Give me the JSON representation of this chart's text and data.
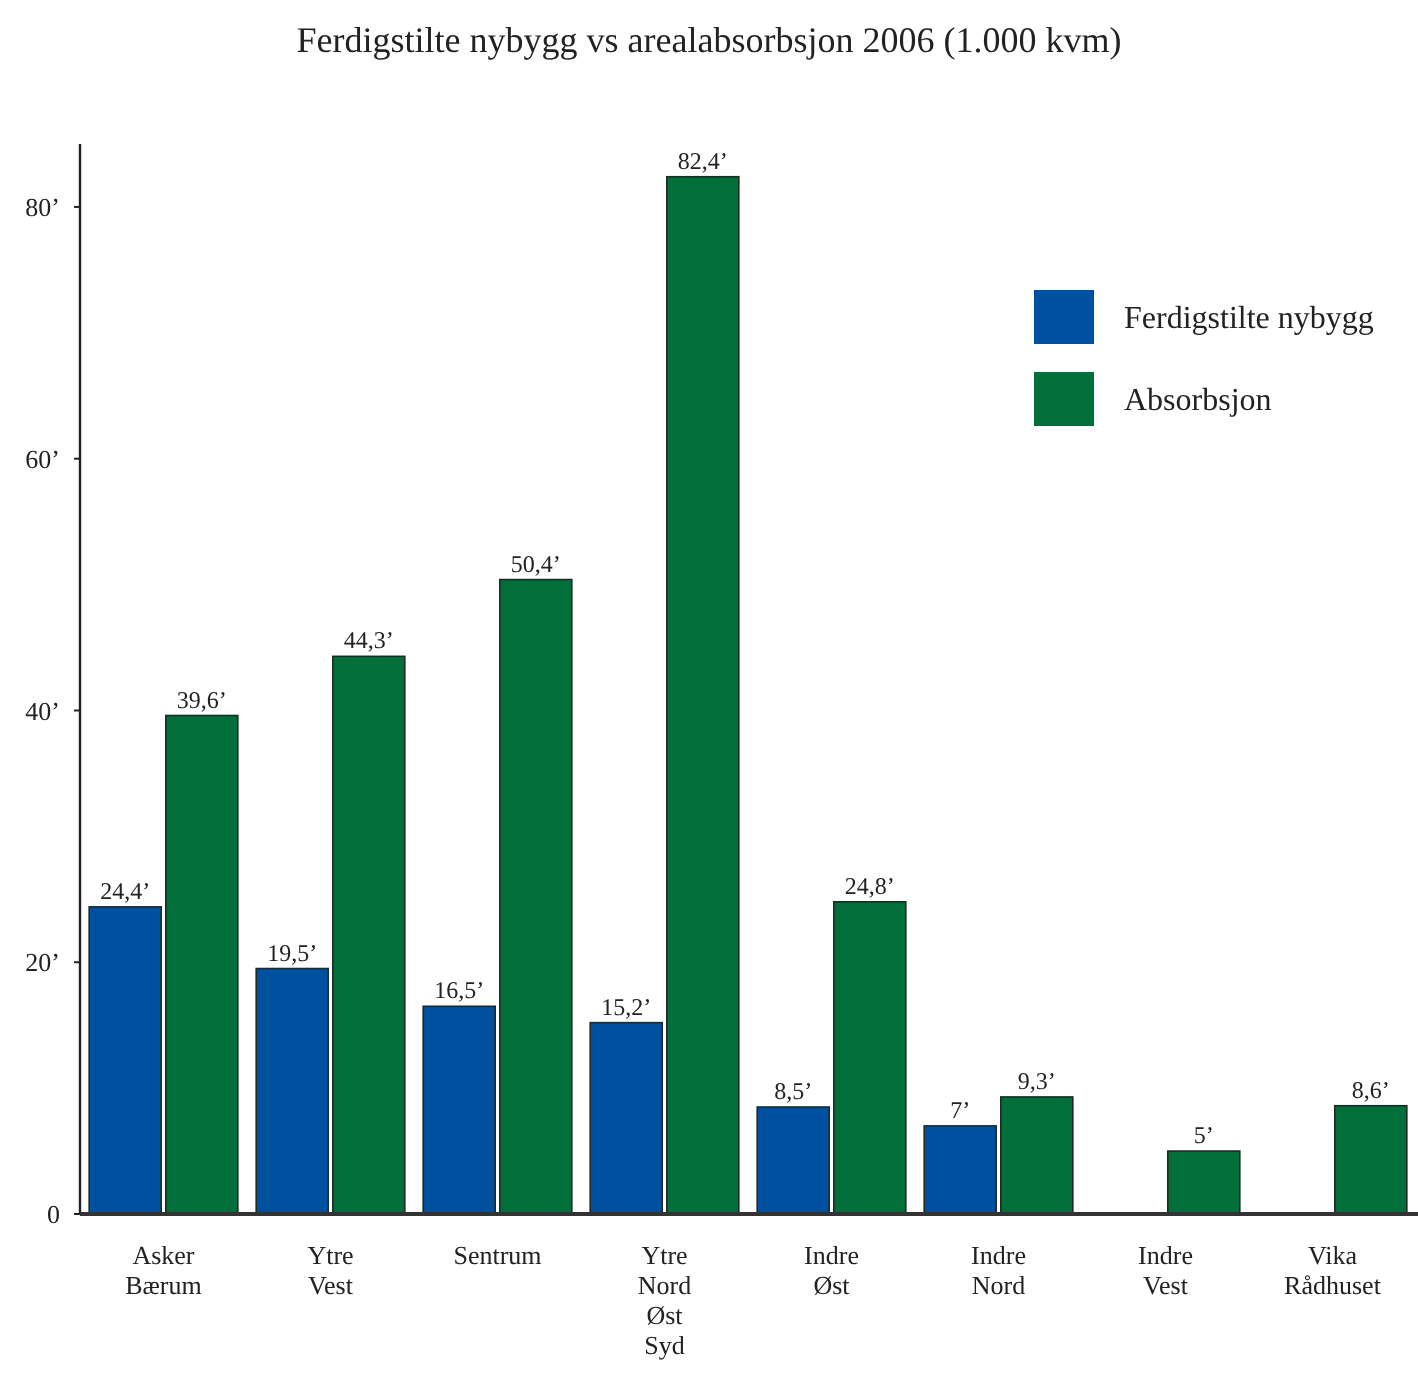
{
  "chart_data": {
    "type": "bar",
    "title": "Ferdigstilte nybygg vs arealabsorbsjon 2006 (1.000 kvm)",
    "categories": [
      "Asker Bærum",
      "Ytre Vest",
      "Sentrum",
      "Ytre Nord Øst Syd",
      "Indre Øst",
      "Indre Nord",
      "Indre Vest",
      "Vika Rådhuset"
    ],
    "series": [
      {
        "name": "Ferdigstilte nybygg",
        "color": "#0050a0",
        "values": [
          24.4,
          19.5,
          16.5,
          15.2,
          8.5,
          7,
          0,
          0
        ],
        "value_labels": [
          "24,4’",
          "19,5’",
          "16,5’",
          "15,2’",
          "8,5’",
          "7’",
          null,
          null
        ]
      },
      {
        "name": "Absorbsjon",
        "color": "#006f3a",
        "values": [
          39.6,
          44.3,
          50.4,
          82.4,
          24.8,
          9.3,
          5,
          8.6
        ],
        "value_labels": [
          "39,6’",
          "44,3’",
          "50,4’",
          "82,4’",
          "24,8’",
          "9,3’",
          "5’",
          "8,6’"
        ]
      }
    ],
    "ylim": [
      0,
      85
    ],
    "yticks": [
      0,
      {
        "value": 20,
        "label": "20’"
      },
      {
        "value": 40,
        "label": "40’"
      },
      {
        "value": 60,
        "label": "60’"
      },
      {
        "value": 80,
        "label": "80’"
      }
    ],
    "legend": "top right"
  }
}
